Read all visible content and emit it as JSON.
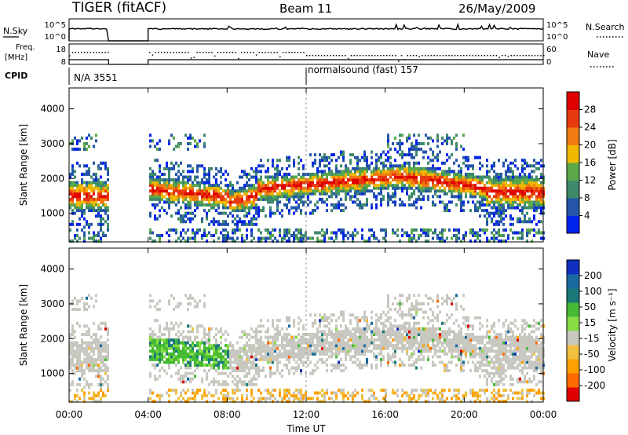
{
  "header": {
    "station": "TIGER (fitACF)",
    "beam": "Beam 11",
    "date": "26/May/2009"
  },
  "strip_labels": {
    "nsky": "N.Sky",
    "nsearch": "N.Search",
    "freq": "Freq.",
    "freq_unit": "[MHz]",
    "nave": "Nave",
    "cpid": "CPID",
    "nsky_ticks": [
      "10^5",
      "10^0"
    ],
    "nsearch_ticks": [
      "10^5",
      "10^0"
    ],
    "freq_ticks": [
      "18",
      "8"
    ],
    "nave_ticks": [
      "60",
      "0"
    ]
  },
  "cpid_segments": [
    {
      "label": "N/A 3551",
      "start": 0
    },
    {
      "label": "normalsound (fast) 157",
      "start": 12
    }
  ],
  "colors": {
    "power": [
      "#0022ee",
      "#2455a8",
      "#3f8a6b",
      "#5aa84a",
      "#f0b800",
      "#f07b10",
      "#e83a10",
      "#e00000"
    ],
    "velocity": [
      "#e00000",
      "#ff6a00",
      "#ffa000",
      "#f0c040",
      "#c8c8c0",
      "#88dd44",
      "#44bb33",
      "#1a7a7a",
      "#1a6aa0",
      "#1030c0"
    ]
  },
  "chart_data": [
    {
      "type": "heatmap",
      "name": "power",
      "xlabel": "",
      "ylabel": "Slant Range [km]",
      "x_range_hours": [
        0,
        24
      ],
      "ylim": [
        180,
        4600
      ],
      "yticks": [
        "1000",
        "2000",
        "3000",
        "4000"
      ],
      "colorbar_label": "Power [dB]",
      "colorbar_ticks": [
        "4",
        "8",
        "12",
        "16",
        "20",
        "24",
        "28"
      ],
      "colorbar_range": [
        0,
        32
      ],
      "data_gaps_hours": [
        [
          2.0,
          4.0
        ]
      ]
    },
    {
      "type": "heatmap",
      "name": "velocity",
      "xlabel": "Time UT",
      "ylabel": "Slant Range [km]",
      "x_range_hours": [
        0,
        24
      ],
      "xticks": [
        "00:00",
        "04:00",
        "08:00",
        "12:00",
        "16:00",
        "20:00",
        "00:00"
      ],
      "ylim": [
        180,
        4600
      ],
      "yticks": [
        "1000",
        "2000",
        "3000",
        "4000"
      ],
      "colorbar_label": "Velocity [m s⁻¹]",
      "colorbar_ticks": [
        "-200",
        "-100",
        "-50",
        "-15",
        "15",
        "50",
        "100",
        "200"
      ],
      "data_gaps_hours": [
        [
          2.0,
          4.0
        ]
      ]
    }
  ]
}
